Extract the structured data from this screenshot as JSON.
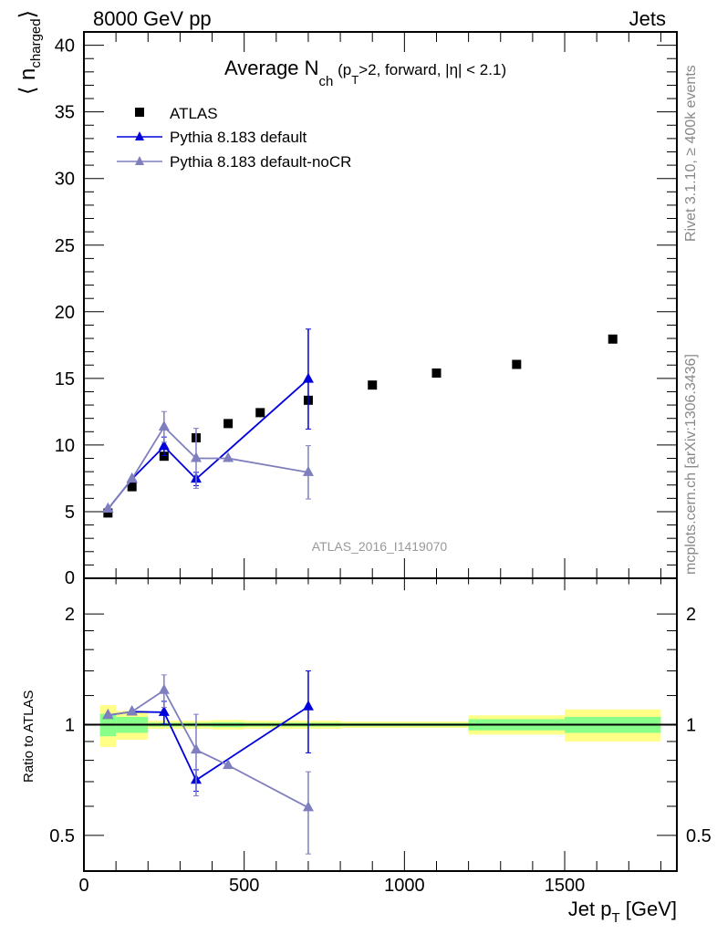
{
  "header": {
    "left": "8000 GeV pp",
    "right": "Jets"
  },
  "side_labels": {
    "rivet": "Rivet 3.1.10, ≥ 400k events",
    "mcplots": "mcplots.cern.ch [arXiv:1306.3436]"
  },
  "analysis_id": "ATLAS_2016_I1419070",
  "chart_data": [
    {
      "type": "scatter",
      "title": {
        "main": "Average N",
        "sub": "ch",
        "rest1": " (p",
        "sub2": "T",
        "rest2": ">2, forward, |η| < 2.1)"
      },
      "ylabel": {
        "main": "⟨ n",
        "sub": "charged",
        "close": "⟩"
      },
      "xlabel": {
        "main": "Jet p",
        "sub": "T",
        "unit": " [GeV]"
      },
      "xlim": [
        0,
        1850
      ],
      "ylim": [
        0,
        41
      ],
      "xticks": [
        0,
        500,
        1000,
        1500
      ],
      "yticks": [
        0,
        5,
        10,
        15,
        20,
        25,
        30,
        35,
        40
      ],
      "legend_position": "top-left",
      "data": {
        "name": "ATLAS",
        "color": "#000000",
        "marker": "square",
        "x": [
          75,
          150,
          250,
          350,
          450,
          550,
          700,
          900,
          1100,
          1350,
          1650
        ],
        "y": [
          4.9,
          6.87,
          9.16,
          10.54,
          11.61,
          12.43,
          13.36,
          14.5,
          15.4,
          16.05,
          17.95
        ],
        "bin_edges": [
          50,
          100,
          200,
          300,
          400,
          500,
          600,
          800,
          1000,
          1200,
          1500,
          1800
        ],
        "rel_err_total": [
          0.13,
          0.09,
          0.025,
          0.025,
          0.03,
          0.025,
          0.025,
          0.02,
          0.02,
          0.06,
          0.1
        ],
        "rel_err_stat": [
          0.07,
          0.05,
          0.012,
          0.012,
          0.015,
          0.012,
          0.012,
          0.01,
          0.01,
          0.035,
          0.05
        ]
      },
      "series": [
        {
          "name": "Pythia 8.183 default",
          "color": "#0000dd",
          "x": [
            75,
            150,
            250,
            350,
            700
          ],
          "y": [
            5.2,
            7.45,
            9.9,
            7.45,
            14.95
          ],
          "err": [
            0.1,
            0.2,
            0.7,
            0.5,
            3.75
          ]
        },
        {
          "name": "Pythia 8.183 default-noCR",
          "color": "#7f7fbf",
          "x": [
            75,
            150,
            250,
            350,
            450,
            700
          ],
          "y": [
            5.2,
            7.45,
            11.36,
            9.0,
            9.0,
            7.95
          ],
          "err": [
            0.1,
            0.2,
            1.15,
            2.25,
            0.15,
            2.0
          ]
        }
      ]
    },
    {
      "type": "scatter",
      "ylabel": "Ratio to ATLAS",
      "ylim": [
        0.4,
        2.5
      ],
      "yscale": "log",
      "yticks": [
        0.5,
        1,
        2
      ],
      "yticklabels": [
        "0.5",
        "1",
        "2"
      ],
      "band_colors": {
        "total": "#ffff88",
        "stat": "#88ff88"
      }
    }
  ]
}
